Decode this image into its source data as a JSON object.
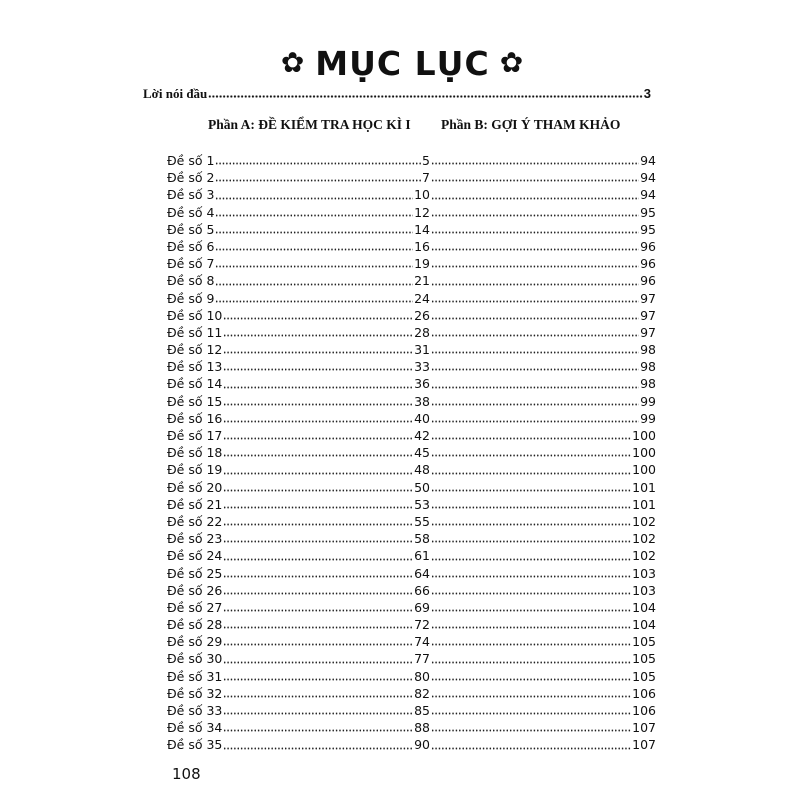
{
  "title": "MỤC LỤC",
  "title_icon": "flower-icon",
  "intro": {
    "label": "Lời nói đầu",
    "page": "3"
  },
  "part_a": "Phần A: ĐỀ KIỂM TRA HỌC KÌ I",
  "part_b": "Phần B: GỢI Ý THAM KHẢO",
  "entries": [
    {
      "label": "Đề số 1",
      "a": "5",
      "b": "94"
    },
    {
      "label": "Đề số 2",
      "a": "7",
      "b": "94"
    },
    {
      "label": "Đề số 3",
      "a": "10",
      "b": "94"
    },
    {
      "label": "Đề số 4",
      "a": "12",
      "b": "95"
    },
    {
      "label": "Đề số 5",
      "a": "14",
      "b": "95"
    },
    {
      "label": "Đề số 6",
      "a": "16",
      "b": "96"
    },
    {
      "label": "Đề số 7",
      "a": "19",
      "b": "96"
    },
    {
      "label": "Đề số 8",
      "a": "21",
      "b": "96"
    },
    {
      "label": "Đề số 9",
      "a": "24",
      "b": "97"
    },
    {
      "label": "Đề số 10",
      "a": "26",
      "b": "97"
    },
    {
      "label": "Đề số 11",
      "a": "28",
      "b": "97"
    },
    {
      "label": "Đề số 12",
      "a": "31",
      "b": "98"
    },
    {
      "label": "Đề số 13",
      "a": "33",
      "b": "98"
    },
    {
      "label": "Đề số 14",
      "a": "36",
      "b": "98"
    },
    {
      "label": "Đề số 15",
      "a": "38",
      "b": "99"
    },
    {
      "label": "Đề số 16",
      "a": "40",
      "b": "99"
    },
    {
      "label": "Đề số 17",
      "a": "42",
      "b": "100"
    },
    {
      "label": "Đề số 18",
      "a": "45",
      "b": "100"
    },
    {
      "label": "Đề số 19",
      "a": "48",
      "b": "100"
    },
    {
      "label": "Đề số 20",
      "a": "50",
      "b": "101"
    },
    {
      "label": "Đề số 21",
      "a": "53",
      "b": "101"
    },
    {
      "label": "Đề số 22",
      "a": "55",
      "b": "102"
    },
    {
      "label": "Đề số 23",
      "a": "58",
      "b": "102"
    },
    {
      "label": "Đề số 24",
      "a": "61",
      "b": "102"
    },
    {
      "label": "Đề số 25",
      "a": "64",
      "b": "103"
    },
    {
      "label": "Đề số 26",
      "a": "66",
      "b": "103"
    },
    {
      "label": "Đề số 27",
      "a": "69",
      "b": "104"
    },
    {
      "label": "Đề số 28",
      "a": "72",
      "b": "104"
    },
    {
      "label": "Đề số 29",
      "a": "74",
      "b": "105"
    },
    {
      "label": "Đề số 30",
      "a": "77",
      "b": "105"
    },
    {
      "label": "Đề số 31",
      "a": "80",
      "b": "105"
    },
    {
      "label": "Đề số 32",
      "a": "82",
      "b": "106"
    },
    {
      "label": "Đề số 33",
      "a": "85",
      "b": "106"
    },
    {
      "label": "Đề số 34",
      "a": "88",
      "b": "107"
    },
    {
      "label": "Đề số 35",
      "a": "90",
      "b": "107"
    }
  ],
  "page_number": "108"
}
